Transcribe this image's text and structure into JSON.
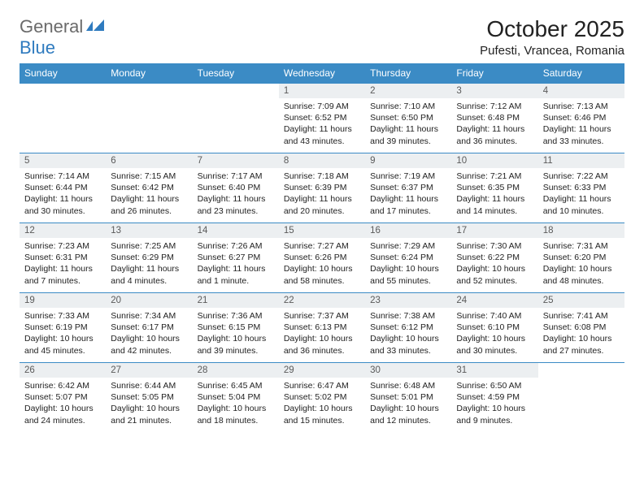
{
  "logo": {
    "general": "General",
    "blue": "Blue"
  },
  "title": "October 2025",
  "location": "Pufesti, Vrancea, Romania",
  "colors": {
    "header_bg": "#3b8bc5",
    "header_text": "#ffffff",
    "daynum_bg": "#eceff1",
    "border": "#3b8bc5",
    "logo_gray": "#6b6b6b",
    "logo_blue": "#2f7bbf"
  },
  "dows": [
    "Sunday",
    "Monday",
    "Tuesday",
    "Wednesday",
    "Thursday",
    "Friday",
    "Saturday"
  ],
  "weeks": [
    [
      {
        "n": "",
        "sr": "",
        "ss": "",
        "dl": ""
      },
      {
        "n": "",
        "sr": "",
        "ss": "",
        "dl": ""
      },
      {
        "n": "",
        "sr": "",
        "ss": "",
        "dl": ""
      },
      {
        "n": "1",
        "sr": "7:09 AM",
        "ss": "6:52 PM",
        "dl": "11 hours and 43 minutes."
      },
      {
        "n": "2",
        "sr": "7:10 AM",
        "ss": "6:50 PM",
        "dl": "11 hours and 39 minutes."
      },
      {
        "n": "3",
        "sr": "7:12 AM",
        "ss": "6:48 PM",
        "dl": "11 hours and 36 minutes."
      },
      {
        "n": "4",
        "sr": "7:13 AM",
        "ss": "6:46 PM",
        "dl": "11 hours and 33 minutes."
      }
    ],
    [
      {
        "n": "5",
        "sr": "7:14 AM",
        "ss": "6:44 PM",
        "dl": "11 hours and 30 minutes."
      },
      {
        "n": "6",
        "sr": "7:15 AM",
        "ss": "6:42 PM",
        "dl": "11 hours and 26 minutes."
      },
      {
        "n": "7",
        "sr": "7:17 AM",
        "ss": "6:40 PM",
        "dl": "11 hours and 23 minutes."
      },
      {
        "n": "8",
        "sr": "7:18 AM",
        "ss": "6:39 PM",
        "dl": "11 hours and 20 minutes."
      },
      {
        "n": "9",
        "sr": "7:19 AM",
        "ss": "6:37 PM",
        "dl": "11 hours and 17 minutes."
      },
      {
        "n": "10",
        "sr": "7:21 AM",
        "ss": "6:35 PM",
        "dl": "11 hours and 14 minutes."
      },
      {
        "n": "11",
        "sr": "7:22 AM",
        "ss": "6:33 PM",
        "dl": "11 hours and 10 minutes."
      }
    ],
    [
      {
        "n": "12",
        "sr": "7:23 AM",
        "ss": "6:31 PM",
        "dl": "11 hours and 7 minutes."
      },
      {
        "n": "13",
        "sr": "7:25 AM",
        "ss": "6:29 PM",
        "dl": "11 hours and 4 minutes."
      },
      {
        "n": "14",
        "sr": "7:26 AM",
        "ss": "6:27 PM",
        "dl": "11 hours and 1 minute."
      },
      {
        "n": "15",
        "sr": "7:27 AM",
        "ss": "6:26 PM",
        "dl": "10 hours and 58 minutes."
      },
      {
        "n": "16",
        "sr": "7:29 AM",
        "ss": "6:24 PM",
        "dl": "10 hours and 55 minutes."
      },
      {
        "n": "17",
        "sr": "7:30 AM",
        "ss": "6:22 PM",
        "dl": "10 hours and 52 minutes."
      },
      {
        "n": "18",
        "sr": "7:31 AM",
        "ss": "6:20 PM",
        "dl": "10 hours and 48 minutes."
      }
    ],
    [
      {
        "n": "19",
        "sr": "7:33 AM",
        "ss": "6:19 PM",
        "dl": "10 hours and 45 minutes."
      },
      {
        "n": "20",
        "sr": "7:34 AM",
        "ss": "6:17 PM",
        "dl": "10 hours and 42 minutes."
      },
      {
        "n": "21",
        "sr": "7:36 AM",
        "ss": "6:15 PM",
        "dl": "10 hours and 39 minutes."
      },
      {
        "n": "22",
        "sr": "7:37 AM",
        "ss": "6:13 PM",
        "dl": "10 hours and 36 minutes."
      },
      {
        "n": "23",
        "sr": "7:38 AM",
        "ss": "6:12 PM",
        "dl": "10 hours and 33 minutes."
      },
      {
        "n": "24",
        "sr": "7:40 AM",
        "ss": "6:10 PM",
        "dl": "10 hours and 30 minutes."
      },
      {
        "n": "25",
        "sr": "7:41 AM",
        "ss": "6:08 PM",
        "dl": "10 hours and 27 minutes."
      }
    ],
    [
      {
        "n": "26",
        "sr": "6:42 AM",
        "ss": "5:07 PM",
        "dl": "10 hours and 24 minutes."
      },
      {
        "n": "27",
        "sr": "6:44 AM",
        "ss": "5:05 PM",
        "dl": "10 hours and 21 minutes."
      },
      {
        "n": "28",
        "sr": "6:45 AM",
        "ss": "5:04 PM",
        "dl": "10 hours and 18 minutes."
      },
      {
        "n": "29",
        "sr": "6:47 AM",
        "ss": "5:02 PM",
        "dl": "10 hours and 15 minutes."
      },
      {
        "n": "30",
        "sr": "6:48 AM",
        "ss": "5:01 PM",
        "dl": "10 hours and 12 minutes."
      },
      {
        "n": "31",
        "sr": "6:50 AM",
        "ss": "4:59 PM",
        "dl": "10 hours and 9 minutes."
      },
      {
        "n": "",
        "sr": "",
        "ss": "",
        "dl": ""
      }
    ]
  ],
  "labels": {
    "sunrise": "Sunrise:",
    "sunset": "Sunset:",
    "daylight": "Daylight:"
  }
}
